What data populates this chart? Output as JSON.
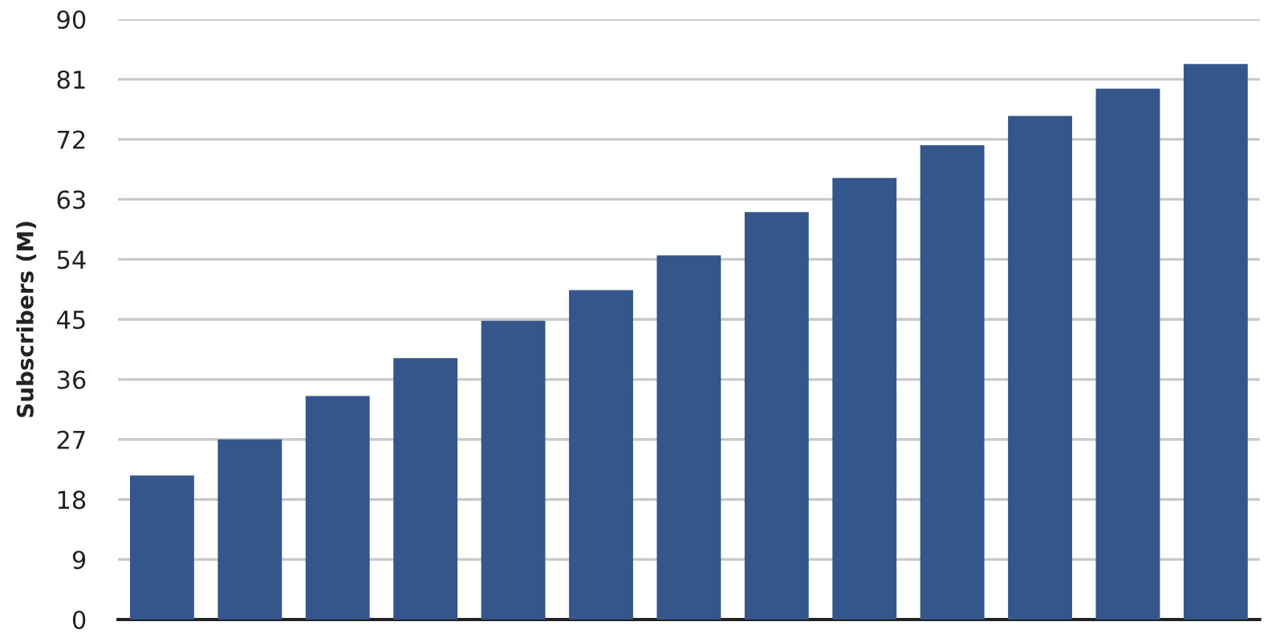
{
  "chart_data": {
    "type": "bar",
    "ylabel": "Subscribers (M)",
    "categories": [
      null,
      null,
      null,
      null,
      null,
      null,
      null,
      null,
      null,
      null,
      null,
      null,
      null
    ],
    "values": [
      21.6,
      27.0,
      33.5,
      39.2,
      44.8,
      49.4,
      54.6,
      61.1,
      66.2,
      71.1,
      75.5,
      79.6,
      83.3
    ],
    "color": "#34568b",
    "ylim": [
      0,
      90
    ],
    "yticks": [
      0,
      9,
      18,
      27,
      36,
      45,
      54,
      63,
      72,
      81,
      90
    ],
    "grid": "y",
    "tick_labels": "y"
  }
}
